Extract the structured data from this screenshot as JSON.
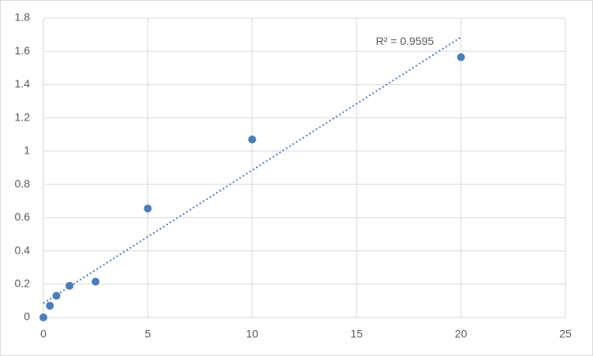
{
  "chart_data": {
    "type": "scatter",
    "x": [
      0,
      0.3125,
      0.625,
      1.25,
      2.5,
      5,
      10,
      20
    ],
    "values": [
      0,
      0.07,
      0.13,
      0.19,
      0.215,
      0.655,
      1.07,
      1.565
    ],
    "color": "#4a7ebb",
    "trendline": {
      "x": [
        0,
        20
      ],
      "values": [
        0.085,
        1.685
      ],
      "color": "#4a7ebb",
      "annotation": "R² = 0.9595"
    },
    "xlim": [
      0,
      25
    ],
    "xticks": [
      0,
      5,
      10,
      15,
      20,
      25
    ],
    "ylim": [
      0,
      1.8
    ],
    "yticks": [
      0,
      0.2,
      0.4,
      0.6,
      0.8,
      1,
      1.2,
      1.4,
      1.6,
      1.8
    ],
    "grid": true
  }
}
